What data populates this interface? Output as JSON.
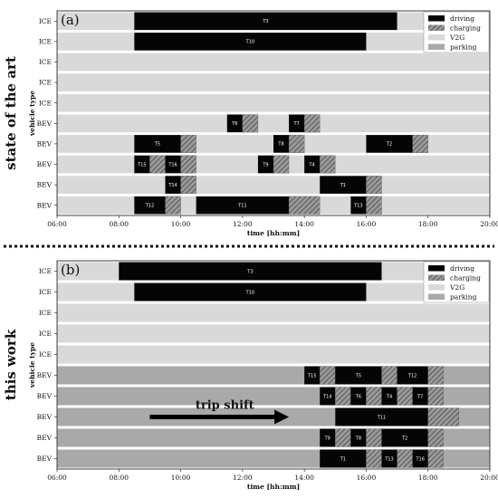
{
  "chart_data": [
    {
      "type": "gantt",
      "panel_tag": "(a)",
      "side_title": "state of the art",
      "xlabel": "time [hh:mm]",
      "ylabel": "vehicle type",
      "xlim": [
        6,
        20
      ],
      "xticks": [
        {
          "value": 6,
          "label": "06:00"
        },
        {
          "value": 8,
          "label": "08:00"
        },
        {
          "value": 10,
          "label": "10:00"
        },
        {
          "value": 12,
          "label": "12:00"
        },
        {
          "value": 14,
          "label": "14:00"
        },
        {
          "value": 16,
          "label": "16:00"
        },
        {
          "value": 18,
          "label": "18:00"
        },
        {
          "value": 20,
          "label": "20:00"
        }
      ],
      "rows": [
        {
          "label": "ICE",
          "background": "V2G",
          "segments": [
            {
              "kind": "driving",
              "start": 8.5,
              "end": 17.0,
              "label": "T3"
            }
          ]
        },
        {
          "label": "ICE",
          "background": "V2G",
          "segments": [
            {
              "kind": "driving",
              "start": 8.5,
              "end": 16.0,
              "label": "T10"
            }
          ]
        },
        {
          "label": "ICE",
          "background": "V2G",
          "segments": []
        },
        {
          "label": "ICE",
          "background": "V2G",
          "segments": []
        },
        {
          "label": "ICE",
          "background": "V2G",
          "segments": []
        },
        {
          "label": "BEV",
          "background": "V2G",
          "segments": [
            {
              "kind": "driving",
              "start": 11.5,
              "end": 12.0,
              "label": "T6"
            },
            {
              "kind": "charging",
              "start": 12.0,
              "end": 12.5
            },
            {
              "kind": "driving",
              "start": 13.5,
              "end": 14.0,
              "label": "T7"
            },
            {
              "kind": "charging",
              "start": 14.0,
              "end": 14.5
            }
          ]
        },
        {
          "label": "BEV",
          "background": "V2G",
          "segments": [
            {
              "kind": "driving",
              "start": 8.5,
              "end": 10.0,
              "label": "T5"
            },
            {
              "kind": "charging",
              "start": 10.0,
              "end": 10.5
            },
            {
              "kind": "driving",
              "start": 13.0,
              "end": 13.5,
              "label": "T8"
            },
            {
              "kind": "charging",
              "start": 13.5,
              "end": 14.0
            },
            {
              "kind": "driving",
              "start": 16.0,
              "end": 17.5,
              "label": "T2"
            },
            {
              "kind": "charging",
              "start": 17.5,
              "end": 18.0
            }
          ]
        },
        {
          "label": "BEV",
          "background": "V2G",
          "segments": [
            {
              "kind": "driving",
              "start": 8.5,
              "end": 9.0,
              "label": "T15"
            },
            {
              "kind": "charging",
              "start": 9.0,
              "end": 9.5
            },
            {
              "kind": "driving",
              "start": 9.5,
              "end": 10.0,
              "label": "T16"
            },
            {
              "kind": "charging",
              "start": 10.0,
              "end": 10.5
            },
            {
              "kind": "driving",
              "start": 12.5,
              "end": 13.0,
              "label": "T9"
            },
            {
              "kind": "charging",
              "start": 13.0,
              "end": 13.5
            },
            {
              "kind": "driving",
              "start": 14.0,
              "end": 14.5,
              "label": "T4"
            },
            {
              "kind": "charging",
              "start": 14.5,
              "end": 15.0
            }
          ]
        },
        {
          "label": "BEV",
          "background": "V2G",
          "segments": [
            {
              "kind": "driving",
              "start": 9.5,
              "end": 10.0,
              "label": "T14"
            },
            {
              "kind": "charging",
              "start": 10.0,
              "end": 10.5
            },
            {
              "kind": "driving",
              "start": 14.5,
              "end": 16.0,
              "label": "T1"
            },
            {
              "kind": "charging",
              "start": 16.0,
              "end": 16.5
            }
          ]
        },
        {
          "label": "BEV",
          "background": "V2G",
          "segments": [
            {
              "kind": "driving",
              "start": 8.5,
              "end": 9.5,
              "label": "T12"
            },
            {
              "kind": "charging",
              "start": 9.5,
              "end": 10.0
            },
            {
              "kind": "driving",
              "start": 10.5,
              "end": 13.5,
              "label": "T11"
            },
            {
              "kind": "charging",
              "start": 13.5,
              "end": 14.5
            },
            {
              "kind": "driving",
              "start": 15.5,
              "end": 16.0,
              "label": "T13"
            },
            {
              "kind": "charging",
              "start": 16.0,
              "end": 16.5
            }
          ]
        }
      ],
      "legend": {
        "position": "top-right",
        "items": [
          {
            "kind": "driving",
            "label": "driving"
          },
          {
            "kind": "charging",
            "label": "charging"
          },
          {
            "kind": "V2G",
            "label": "V2G"
          },
          {
            "kind": "parking",
            "label": "parking"
          }
        ]
      }
    },
    {
      "type": "gantt",
      "panel_tag": "(b)",
      "side_title": "this work",
      "xlabel": "time [hh:mm]",
      "ylabel": "vehicle type",
      "xlim": [
        6,
        20
      ],
      "xticks": [
        {
          "value": 6,
          "label": "06:00"
        },
        {
          "value": 8,
          "label": "08:00"
        },
        {
          "value": 10,
          "label": "10:00"
        },
        {
          "value": 12,
          "label": "12:00"
        },
        {
          "value": 14,
          "label": "14:00"
        },
        {
          "value": 16,
          "label": "16:00"
        },
        {
          "value": 18,
          "label": "18:00"
        },
        {
          "value": 20,
          "label": "20:00"
        }
      ],
      "rows": [
        {
          "label": "ICE",
          "background": "V2G",
          "segments": [
            {
              "kind": "driving",
              "start": 8.0,
              "end": 16.5,
              "label": "T3"
            }
          ]
        },
        {
          "label": "ICE",
          "background": "V2G",
          "segments": [
            {
              "kind": "driving",
              "start": 8.5,
              "end": 16.0,
              "label": "T10"
            }
          ]
        },
        {
          "label": "ICE",
          "background": "V2G",
          "segments": []
        },
        {
          "label": "ICE",
          "background": "V2G",
          "segments": []
        },
        {
          "label": "ICE",
          "background": "V2G",
          "segments": []
        },
        {
          "label": "BEV",
          "background": "parking",
          "segments": [
            {
              "kind": "driving",
              "start": 14.0,
              "end": 14.5,
              "label": "T15"
            },
            {
              "kind": "charging",
              "start": 14.5,
              "end": 15.0
            },
            {
              "kind": "driving",
              "start": 15.0,
              "end": 16.5,
              "label": "T5"
            },
            {
              "kind": "charging",
              "start": 16.5,
              "end": 17.0
            },
            {
              "kind": "driving",
              "start": 17.0,
              "end": 18.0,
              "label": "T12"
            },
            {
              "kind": "charging",
              "start": 18.0,
              "end": 18.5
            }
          ]
        },
        {
          "label": "BEV",
          "background": "parking",
          "segments": [
            {
              "kind": "driving",
              "start": 14.5,
              "end": 15.0,
              "label": "T14"
            },
            {
              "kind": "charging",
              "start": 15.0,
              "end": 15.5
            },
            {
              "kind": "driving",
              "start": 15.5,
              "end": 16.0,
              "label": "T6"
            },
            {
              "kind": "charging",
              "start": 16.0,
              "end": 16.5
            },
            {
              "kind": "driving",
              "start": 16.5,
              "end": 17.0,
              "label": "T4"
            },
            {
              "kind": "charging",
              "start": 17.0,
              "end": 17.5
            },
            {
              "kind": "driving",
              "start": 17.5,
              "end": 18.0,
              "label": "T7"
            },
            {
              "kind": "charging",
              "start": 18.0,
              "end": 18.5
            }
          ]
        },
        {
          "label": "BEV",
          "background": "parking",
          "segments": [
            {
              "kind": "driving",
              "start": 15.0,
              "end": 18.0,
              "label": "T11"
            },
            {
              "kind": "charging",
              "start": 18.0,
              "end": 19.0
            }
          ]
        },
        {
          "label": "BEV",
          "background": "parking",
          "segments": [
            {
              "kind": "driving",
              "start": 14.5,
              "end": 15.0,
              "label": "T9"
            },
            {
              "kind": "charging",
              "start": 15.0,
              "end": 15.5
            },
            {
              "kind": "driving",
              "start": 15.5,
              "end": 16.0,
              "label": "T8"
            },
            {
              "kind": "charging",
              "start": 16.0,
              "end": 16.5
            },
            {
              "kind": "driving",
              "start": 16.5,
              "end": 18.0,
              "label": "T2"
            },
            {
              "kind": "charging",
              "start": 18.0,
              "end": 18.5
            }
          ]
        },
        {
          "label": "BEV",
          "background": "parking",
          "segments": [
            {
              "kind": "driving",
              "start": 14.5,
              "end": 16.0,
              "label": "T1"
            },
            {
              "kind": "charging",
              "start": 16.0,
              "end": 16.5
            },
            {
              "kind": "driving",
              "start": 16.5,
              "end": 17.0,
              "label": "T13"
            },
            {
              "kind": "charging",
              "start": 17.0,
              "end": 17.5
            },
            {
              "kind": "driving",
              "start": 17.5,
              "end": 18.0,
              "label": "T16"
            },
            {
              "kind": "charging",
              "start": 18.0,
              "end": 18.5
            }
          ]
        }
      ],
      "legend": {
        "position": "top-right",
        "items": [
          {
            "kind": "driving",
            "label": "driving"
          },
          {
            "kind": "charging",
            "label": "charging"
          },
          {
            "kind": "V2G",
            "label": "V2G"
          },
          {
            "kind": "parking",
            "label": "parking"
          }
        ]
      },
      "annotation": {
        "text": "trip shift",
        "arrow_from": 9.0,
        "arrow_to": 13.5,
        "row": 7
      }
    }
  ],
  "colors": {
    "driving": "#050505",
    "charging_fill": "#9a9a9a",
    "charging_hatch": "#3a3a3a",
    "V2G": "#d9d9d9",
    "parking": "#a9a9a9",
    "separator": "#111111"
  }
}
